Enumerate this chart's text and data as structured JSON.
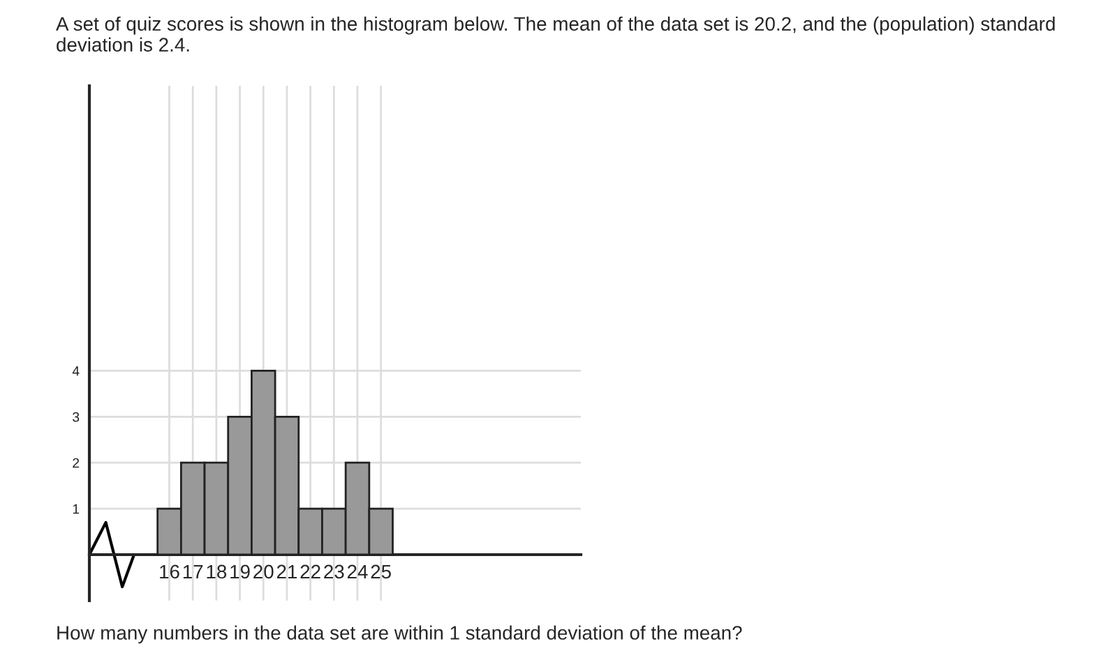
{
  "chart_data": {
    "type": "histogram",
    "title": "A set of quiz scores is shown in the histogram below. The mean of the data set is 20.2, and the (population) standard deviation is 2.4.",
    "annotations": [
      "How many numbers in the data set are within 1 standard deviation of the mean?"
    ],
    "bins": [
      15.5,
      16.5,
      17.5,
      18.5,
      19.5,
      20.5,
      21.5,
      22.5,
      23.5,
      24.5,
      25.5
    ],
    "values": [
      1,
      2,
      2,
      3,
      4,
      3,
      1,
      1,
      2,
      1
    ],
    "color": "#999999",
    "xlim": [
      12.6,
      33.5
    ],
    "ylim": [
      -1,
      10.2
    ],
    "xticks": [
      16,
      17,
      18,
      19,
      20,
      21,
      22,
      23,
      24,
      25
    ],
    "yticks": [
      1,
      2,
      3,
      4
    ],
    "grid": true
  }
}
